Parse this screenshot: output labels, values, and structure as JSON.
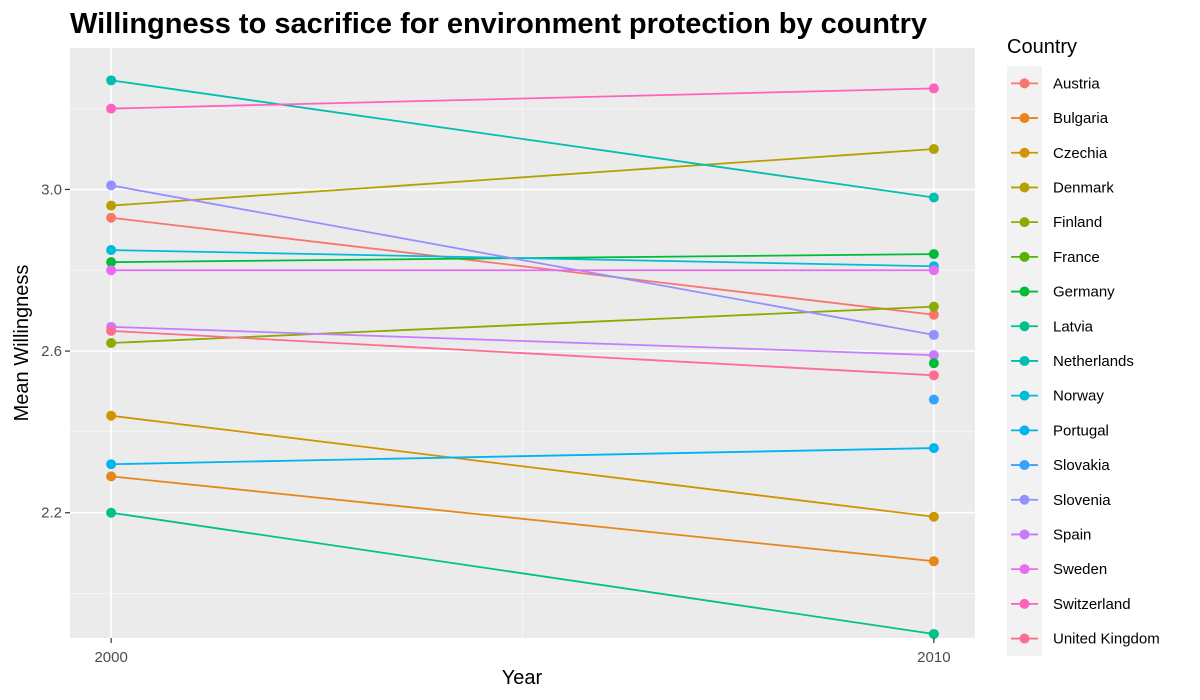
{
  "chart_data": {
    "type": "line",
    "title": "Willingness to sacrifice for environment protection by country",
    "xlabel": "Year",
    "ylabel": "Mean Willingness",
    "x": [
      2000,
      2010
    ],
    "xlim": [
      1999.5,
      2010.5
    ],
    "ylim": [
      1.89,
      3.35
    ],
    "xticks": [
      2000,
      2010
    ],
    "yticks": [
      2.2,
      2.6,
      3.0
    ],
    "yminor": [
      2.0,
      2.4,
      2.8,
      3.2
    ],
    "grid": true,
    "legend_title": "Country",
    "legend_position": "right",
    "series": [
      {
        "name": "Austria",
        "color": "#F8766D",
        "values": [
          2.93,
          2.69
        ]
      },
      {
        "name": "Bulgaria",
        "color": "#E7861B",
        "values": [
          2.29,
          2.08
        ]
      },
      {
        "name": "Czechia",
        "color": "#D09400",
        "values": [
          2.44,
          2.19
        ]
      },
      {
        "name": "Denmark",
        "color": "#B2A100",
        "values": [
          2.96,
          3.1
        ]
      },
      {
        "name": "Finland",
        "color": "#8BAB00",
        "values": [
          2.62,
          2.71
        ]
      },
      {
        "name": "France",
        "color": "#55B400",
        "values": [
          null,
          null
        ]
      },
      {
        "name": "Germany",
        "color": "#00BA38",
        "values": [
          2.82,
          2.84
        ]
      },
      {
        "name": "Latvia",
        "color": "#00C08B",
        "values": [
          2.2,
          1.9
        ]
      },
      {
        "name": "Netherlands",
        "color": "#00BFB1",
        "values": [
          3.27,
          2.98
        ]
      },
      {
        "name": "Norway",
        "color": "#00BCD8",
        "values": [
          2.85,
          2.81
        ]
      },
      {
        "name": "Portugal",
        "color": "#00B4F0",
        "values": [
          2.32,
          2.36
        ]
      },
      {
        "name": "Slovakia",
        "color": "#35A2FF",
        "values": [
          null,
          2.48
        ]
      },
      {
        "name": "Slovenia",
        "color": "#9590FF",
        "values": [
          3.01,
          2.64
        ]
      },
      {
        "name": "Spain",
        "color": "#C77CFF",
        "values": [
          2.66,
          2.59
        ]
      },
      {
        "name": "Sweden",
        "color": "#E76BF3",
        "values": [
          2.8,
          2.8
        ]
      },
      {
        "name": "Switzerland",
        "color": "#FF62BC",
        "values": [
          3.2,
          3.25
        ]
      },
      {
        "name": "United Kingdom",
        "color": "#FF6C91",
        "values": [
          2.65,
          2.54
        ]
      }
    ],
    "extra_points": [
      {
        "series": "Germany",
        "x": 2010,
        "y": 2.57,
        "color": "#00BA38"
      }
    ]
  }
}
